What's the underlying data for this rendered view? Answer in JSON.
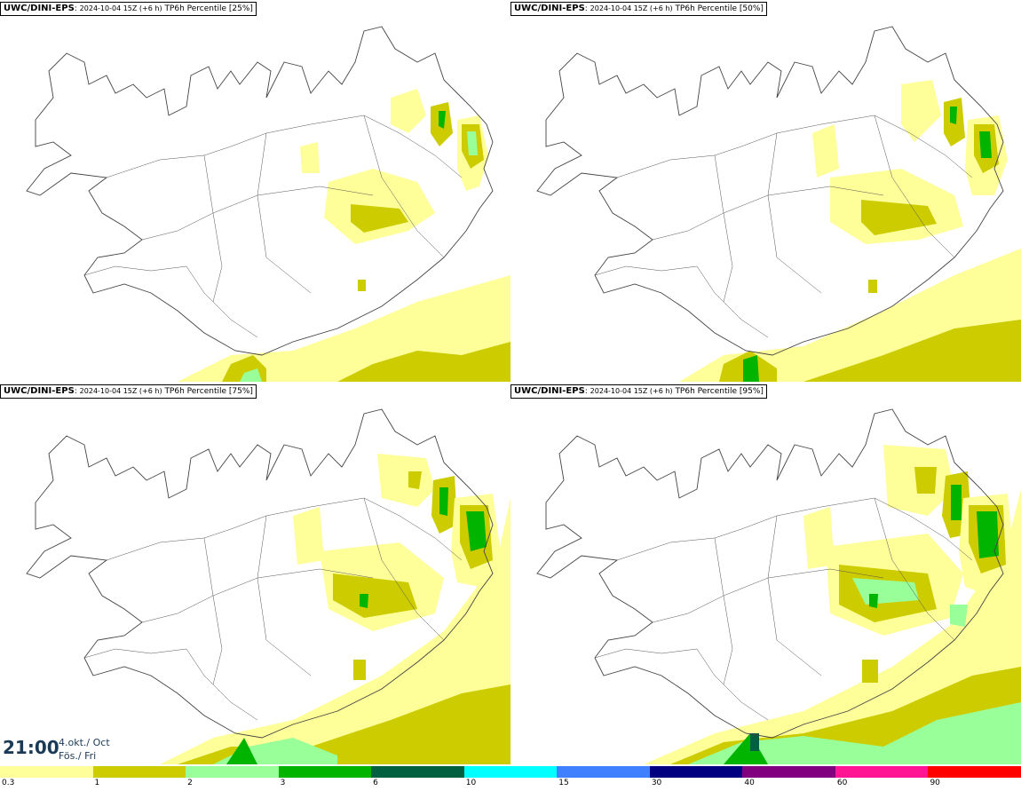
{
  "panels": [
    {
      "model": "UWC/DINI-EPS",
      "run": "2024-10-04 15Z (+6 h)",
      "field": "TP6h Percentile [25%]"
    },
    {
      "model": "UWC/DINI-EPS",
      "run": "2024-10-04 15Z (+6 h)",
      "field": "TP6h Percentile [50%]"
    },
    {
      "model": "UWC/DINI-EPS",
      "run": "2024-10-04 15Z (+6 h)",
      "field": "TP6h Percentile [75%]"
    },
    {
      "model": "UWC/DINI-EPS",
      "run": "2024-10-04 15Z (+6 h)",
      "field": "TP6h Percentile [95%]"
    }
  ],
  "valid_time": {
    "time": "21:00",
    "date_line1": "4.okt./ Oct",
    "date_line2": "Fös./ Fri"
  },
  "legend": {
    "ticks": [
      "0.3",
      "1",
      "2",
      "3",
      "6",
      "10",
      "15",
      "30",
      "40",
      "60",
      "90"
    ],
    "colors": [
      "#ffff99",
      "#cccc00",
      "#99ff99",
      "#00b400",
      "#006040",
      "#00ffff",
      "#4080ff",
      "#000080",
      "#800080",
      "#ff1493",
      "#ff0000"
    ]
  }
}
